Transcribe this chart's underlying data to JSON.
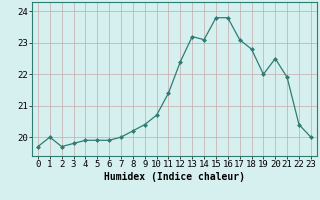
{
  "x": [
    0,
    1,
    2,
    3,
    4,
    5,
    6,
    7,
    8,
    9,
    10,
    11,
    12,
    13,
    14,
    15,
    16,
    17,
    18,
    19,
    20,
    21,
    22,
    23
  ],
  "y": [
    19.7,
    20.0,
    19.7,
    19.8,
    19.9,
    19.9,
    19.9,
    20.0,
    20.2,
    20.4,
    20.7,
    21.4,
    22.4,
    23.2,
    23.1,
    23.8,
    23.8,
    23.1,
    22.8,
    22.0,
    22.5,
    21.9,
    20.4,
    20.0
  ],
  "line_color": "#2e7d72",
  "marker": "D",
  "marker_size": 2,
  "bg_color": "#d6f0f0",
  "grid_color_v": "#c4aaaa",
  "grid_color_h": "#c4aaaa",
  "xlabel": "Humidex (Indice chaleur)",
  "ylim": [
    19.4,
    24.3
  ],
  "xlim": [
    -0.5,
    23.5
  ],
  "yticks": [
    20,
    21,
    22,
    23,
    24
  ],
  "xlabel_fontsize": 7,
  "tick_fontsize": 6.5,
  "line_width": 0.9
}
